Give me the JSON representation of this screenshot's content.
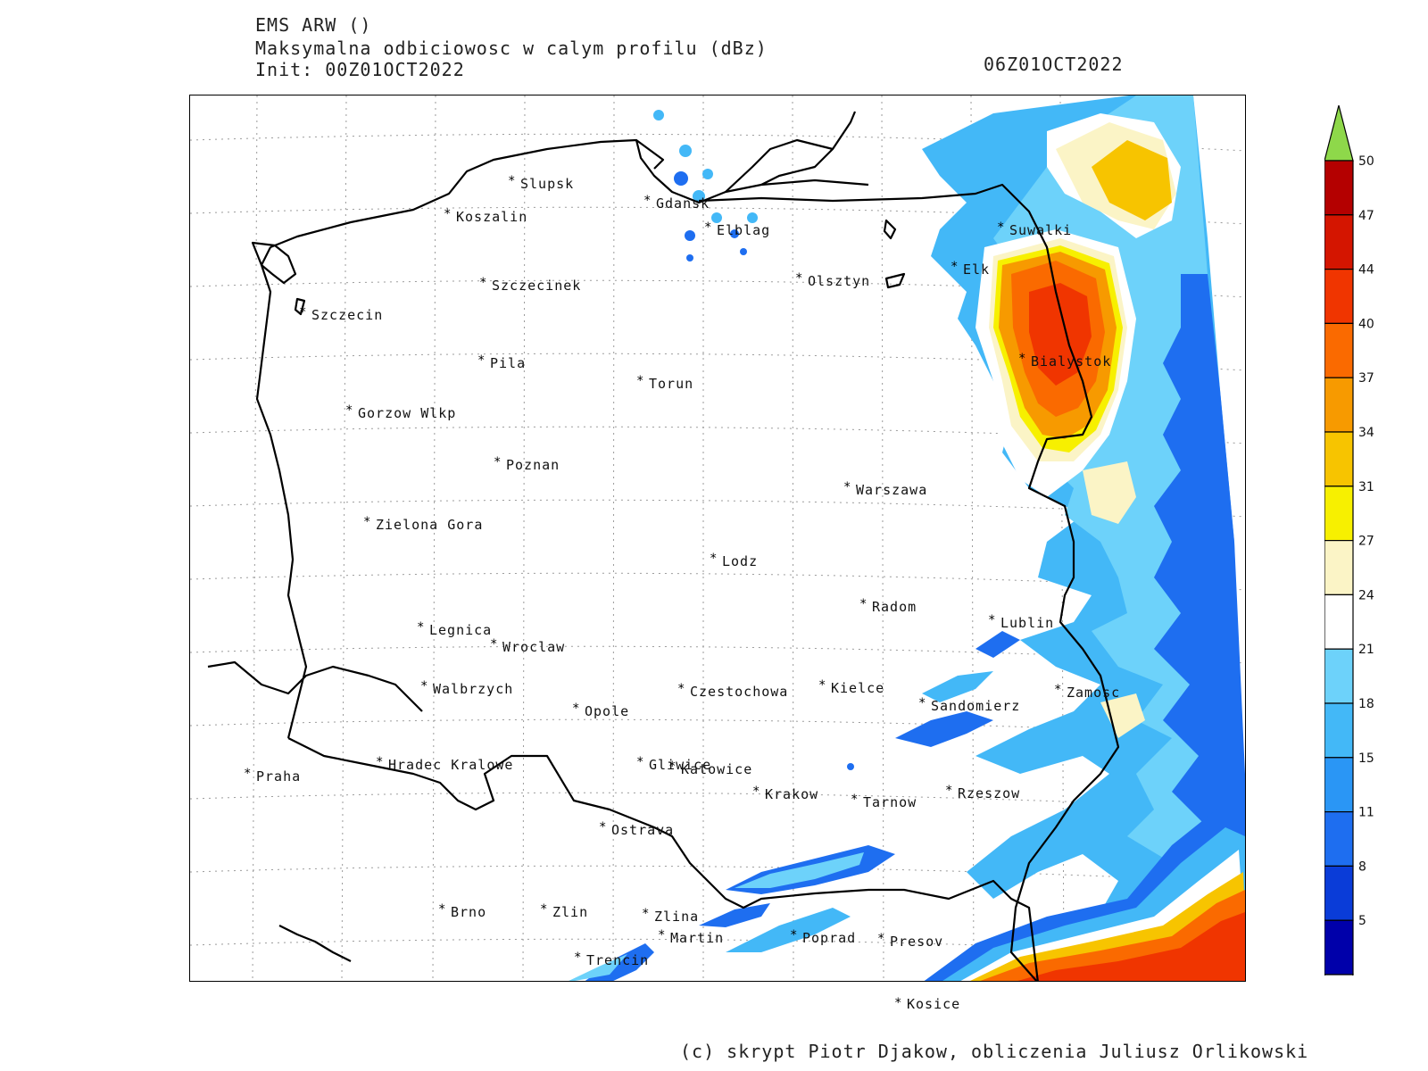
{
  "header": {
    "line1": "EMS ARW ()",
    "line2": "Maksymalna odbiciowosc w calym profilu (dBz)",
    "line3": "Init: 00Z01OCT2022",
    "valid_time": "06Z01OCT2022"
  },
  "footer": {
    "credit": "(c) skrypt Piotr Djakow, obliczenia Juliusz Orlikowski"
  },
  "colorbar": {
    "levels": [
      "5",
      "8",
      "11",
      "15",
      "18",
      "21",
      "24",
      "27",
      "31",
      "34",
      "37",
      "40",
      "44",
      "47",
      "50"
    ],
    "colors": [
      "#0000aa",
      "#0a3cd8",
      "#1e6ef0",
      "#2a96f5",
      "#43b8f7",
      "#6dd2fa",
      "#ffffff",
      "#fbf4c6",
      "#f7f000",
      "#f7c400",
      "#f79a00",
      "#fa6a00",
      "#f03500",
      "#d41500",
      "#b40000"
    ],
    "overflow_color": "#8ed84a"
  },
  "cities": [
    {
      "name": "Slupsk"
    },
    {
      "name": "Koszalin"
    },
    {
      "name": "Gdansk"
    },
    {
      "name": "Elblag"
    },
    {
      "name": "Suwalki"
    },
    {
      "name": "Elk"
    },
    {
      "name": "Olsztyn"
    },
    {
      "name": "Szczecinek"
    },
    {
      "name": "Szczecin"
    },
    {
      "name": "Pila"
    },
    {
      "name": "Torun"
    },
    {
      "name": "Bialystok"
    },
    {
      "name": "Gorzow Wlkp"
    },
    {
      "name": "Poznan"
    },
    {
      "name": "Warszawa"
    },
    {
      "name": "Zielona Gora"
    },
    {
      "name": "Lodz"
    },
    {
      "name": "Radom"
    },
    {
      "name": "Lublin"
    },
    {
      "name": "Legnica"
    },
    {
      "name": "Wroclaw"
    },
    {
      "name": "Walbrzych"
    },
    {
      "name": "Czestochowa"
    },
    {
      "name": "Kielce"
    },
    {
      "name": "Zamosc"
    },
    {
      "name": "Sandomierz"
    },
    {
      "name": "Opole"
    },
    {
      "name": "Praha"
    },
    {
      "name": "Hradec Kralowe"
    },
    {
      "name": "Gliwice"
    },
    {
      "name": "Katowice"
    },
    {
      "name": "Krakow"
    },
    {
      "name": "Tarnow"
    },
    {
      "name": "Rzeszow"
    },
    {
      "name": "Ostrava"
    },
    {
      "name": "Brno"
    },
    {
      "name": "Zlin"
    },
    {
      "name": "Zlina"
    },
    {
      "name": "Martin"
    },
    {
      "name": "Poprad"
    },
    {
      "name": "Presov"
    },
    {
      "name": "Trencin"
    },
    {
      "name": "Kosice"
    }
  ]
}
